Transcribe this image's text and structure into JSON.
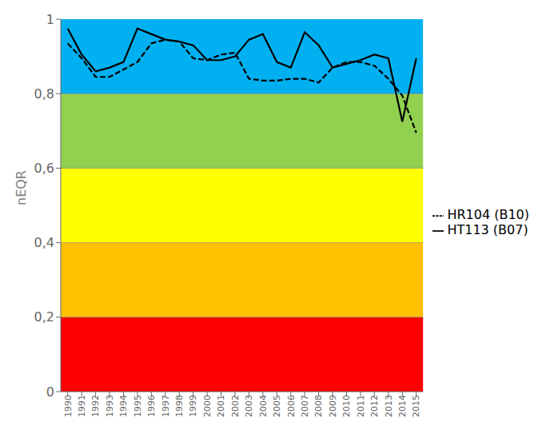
{
  "chart_data": {
    "type": "line",
    "x": [
      1990,
      1991,
      1992,
      1993,
      1994,
      1995,
      1996,
      1997,
      1998,
      1999,
      2000,
      2001,
      2002,
      2003,
      2004,
      2005,
      2006,
      2007,
      2008,
      2009,
      2010,
      2011,
      2012,
      2013,
      2014,
      2015
    ],
    "series": [
      {
        "name": "HT113 (B07)",
        "color": "#000000",
        "line_style": "solid",
        "values": [
          0.975,
          0.905,
          0.86,
          0.87,
          0.885,
          0.975,
          0.96,
          0.945,
          0.94,
          0.93,
          0.89,
          0.89,
          0.9,
          0.945,
          0.96,
          0.885,
          0.87,
          0.965,
          0.93,
          0.87,
          0.88,
          0.89,
          0.905,
          0.895,
          0.725,
          0.895
        ]
      },
      {
        "name": "HR104 (B10)",
        "color": "#000000",
        "line_style": "dashed",
        "values": [
          0.935,
          0.895,
          0.845,
          0.845,
          0.865,
          0.885,
          0.935,
          0.945,
          0.94,
          0.895,
          0.89,
          0.905,
          0.91,
          0.84,
          0.835,
          0.835,
          0.84,
          0.84,
          0.83,
          0.87,
          0.885,
          0.885,
          0.875,
          0.84,
          0.795,
          0.695
        ]
      }
    ],
    "bands": [
      {
        "from": 0.0,
        "to": 0.2,
        "color": "#FF0000"
      },
      {
        "from": 0.2,
        "to": 0.4,
        "color": "#FFC000"
      },
      {
        "from": 0.4,
        "to": 0.6,
        "color": "#FFFF00"
      },
      {
        "from": 0.6,
        "to": 0.8,
        "color": "#92D050"
      },
      {
        "from": 0.8,
        "to": 1.0,
        "color": "#00B0F0"
      }
    ],
    "ylabel": "nEQR",
    "xlim": [
      1989.5,
      2015.5
    ],
    "ylim": [
      0,
      1.0
    ],
    "xticks": [
      1990,
      1991,
      1992,
      1993,
      1994,
      1995,
      1996,
      1997,
      1998,
      1999,
      2000,
      2001,
      2002,
      2003,
      2004,
      2005,
      2006,
      2007,
      2008,
      2009,
      2010,
      2011,
      2012,
      2013,
      2014,
      2015
    ],
    "yticks": [
      0,
      {
        "value": 0.2,
        "label": "0,2"
      },
      {
        "value": 0.4,
        "label": "0,4"
      },
      {
        "value": 0.6,
        "label": "0,6"
      },
      {
        "value": 0.8,
        "label": "0,8"
      },
      1.0
    ],
    "grid": false,
    "legend": "right"
  }
}
